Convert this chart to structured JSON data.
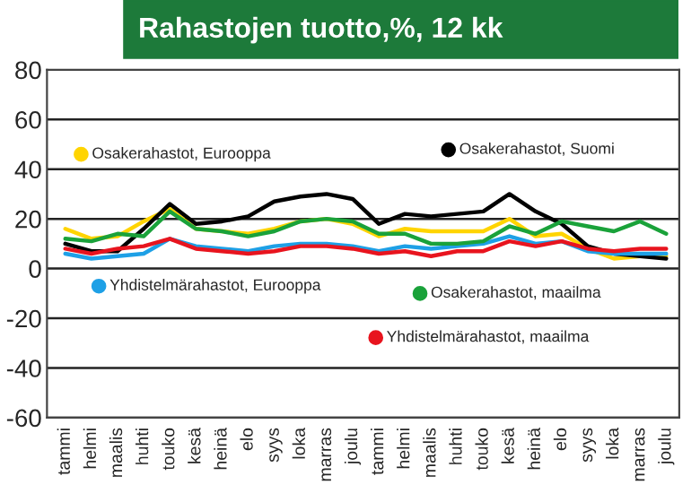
{
  "chart_data": {
    "type": "line",
    "title": "Rahastojen tuotto,%, 12 kk",
    "categories": [
      "tammi",
      "helmi",
      "maalis",
      "huhti",
      "touko",
      "kesä",
      "heinä",
      "elo",
      "syys",
      "loka",
      "marras",
      "joulu",
      "tammi",
      "helmi",
      "maalis",
      "huhti",
      "touko",
      "kesä",
      "heinä",
      "elo",
      "syys",
      "loka",
      "marras",
      "joulu"
    ],
    "series": [
      {
        "name": "Osakerahastot, Eurooppa",
        "color": "#ffd400",
        "values": [
          16,
          12,
          13,
          19,
          24,
          16,
          15,
          14,
          16,
          19,
          20,
          18,
          13,
          16,
          15,
          15,
          15,
          20,
          13,
          14,
          8,
          4,
          5,
          5
        ]
      },
      {
        "name": "Osakerahastot, Suomi",
        "color": "#000000",
        "values": [
          10,
          7,
          7,
          16,
          26,
          18,
          19,
          21,
          27,
          29,
          30,
          28,
          18,
          22,
          21,
          22,
          23,
          30,
          23,
          18,
          9,
          6,
          5,
          4
        ]
      },
      {
        "name": "Yhdistelmärahastot, Eurooppa",
        "color": "#1ea0e6",
        "values": [
          6,
          4,
          5,
          6,
          12,
          9,
          8,
          7,
          9,
          10,
          10,
          9,
          7,
          9,
          8,
          9,
          10,
          13,
          10,
          11,
          7,
          6,
          6,
          6
        ]
      },
      {
        "name": "Osakerahastot, maailma",
        "color": "#1aa23a",
        "values": [
          12,
          11,
          14,
          13,
          23,
          16,
          15,
          13,
          15,
          19,
          20,
          19,
          14,
          14,
          10,
          10,
          11,
          17,
          14,
          19,
          17,
          15,
          19,
          14
        ]
      },
      {
        "name": "Yhdistelmärahastot, maailma",
        "color": "#e8141e",
        "values": [
          8,
          6,
          8,
          9,
          12,
          8,
          7,
          6,
          7,
          9,
          9,
          8,
          6,
          7,
          5,
          7,
          7,
          11,
          9,
          11,
          8,
          7,
          8,
          8
        ]
      }
    ],
    "ylim": [
      -60,
      80
    ],
    "yticks": [
      -60,
      -40,
      -20,
      0,
      20,
      40,
      60,
      80
    ],
    "grid": "y",
    "legend": "top left",
    "marker": "none",
    "line_style": "solid"
  }
}
